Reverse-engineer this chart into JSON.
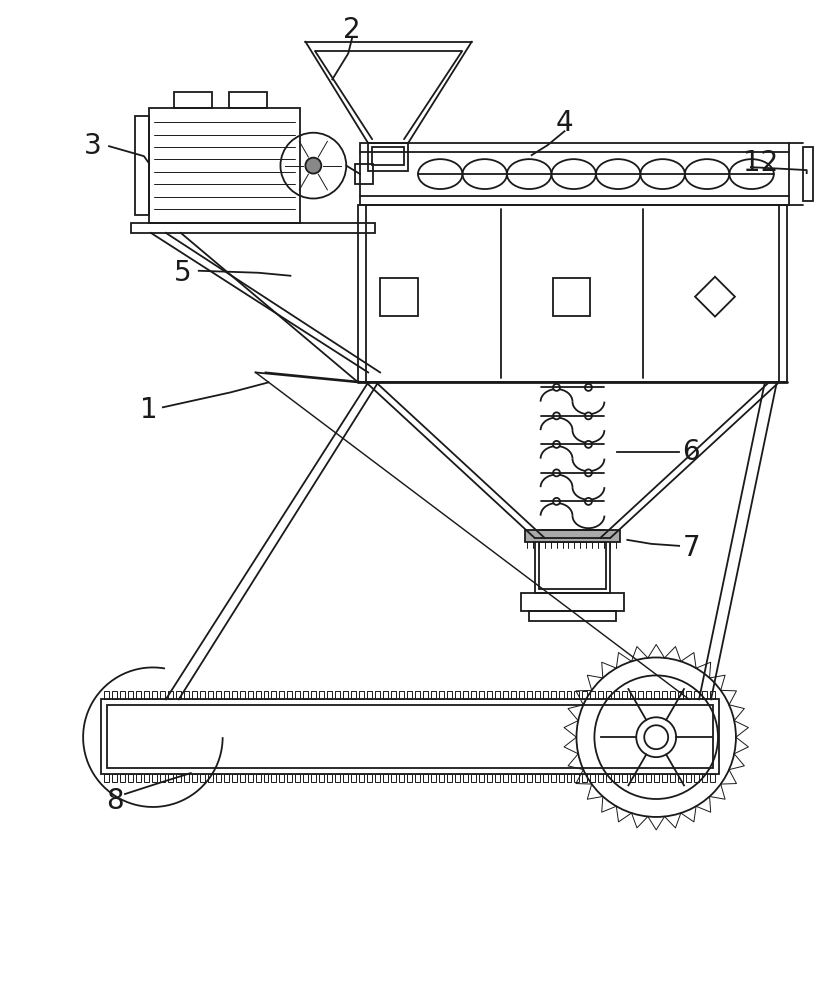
{
  "bg": "#ffffff",
  "lc": "#1a1a1a",
  "lw": 1.3,
  "lw2": 2.0,
  "lwt": 0.7,
  "figsize": [
    8.34,
    10.0
  ],
  "dpi": 100
}
